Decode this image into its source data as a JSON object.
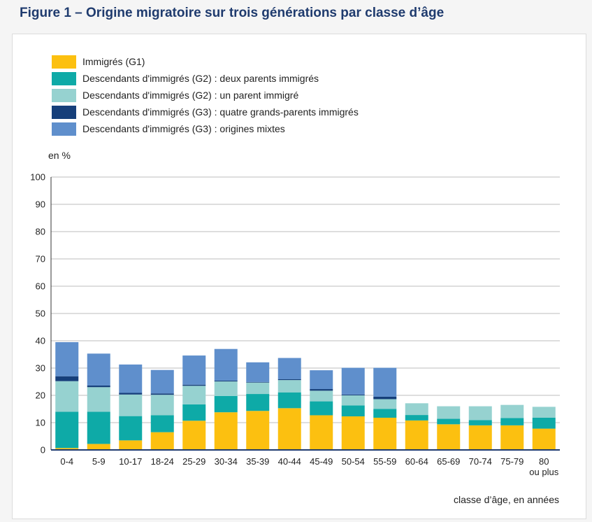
{
  "title": "Figure 1 – Origine migratoire sur trois générations par classe d’âge",
  "chart_data": {
    "type": "bar",
    "stacked": true,
    "title": "Origine migratoire sur trois générations par classe d’âge",
    "xlabel": "classe d’âge, en années",
    "ylabel": "en %",
    "ylim": [
      0,
      100
    ],
    "yticks": [
      0,
      10,
      20,
      30,
      40,
      50,
      60,
      70,
      80,
      90,
      100
    ],
    "grid": true,
    "legend_position": "top-left",
    "categories": [
      "0-4",
      "5-9",
      "10-17",
      "18-24",
      "25-29",
      "30-34",
      "35-39",
      "40-44",
      "45-49",
      "50-54",
      "55-59",
      "60-64",
      "65-69",
      "70-74",
      "75-79",
      "80 ou plus"
    ],
    "category_lines": [
      [
        "0-4"
      ],
      [
        "5-9"
      ],
      [
        "10-17"
      ],
      [
        "18-24"
      ],
      [
        "25-29"
      ],
      [
        "30-34"
      ],
      [
        "35-39"
      ],
      [
        "40-44"
      ],
      [
        "45-49"
      ],
      [
        "50-54"
      ],
      [
        "55-59"
      ],
      [
        "60-64"
      ],
      [
        "65-69"
      ],
      [
        "70-74"
      ],
      [
        "75-79"
      ],
      [
        "80",
        "ou plus"
      ]
    ],
    "series": [
      {
        "name": "Immigrés (G1)",
        "color": "#fcc010",
        "values": [
          0.7,
          2.2,
          3.5,
          6.5,
          10.7,
          13.8,
          14.3,
          15.3,
          12.7,
          12.3,
          11.8,
          10.8,
          9.4,
          9.0,
          9.0,
          7.8
        ]
      },
      {
        "name": "Descendants d'immigrés (G2) : deux parents immigrés",
        "color": "#0eaaa7",
        "values": [
          13.3,
          11.8,
          8.9,
          6.2,
          6.0,
          6.0,
          6.2,
          5.8,
          5.1,
          4.0,
          3.2,
          2.0,
          2.0,
          1.9,
          2.7,
          4.0
        ]
      },
      {
        "name": "Descendants d'immigrés (G2) : un parent immigré",
        "color": "#96d2d0",
        "values": [
          11.2,
          9.0,
          7.9,
          7.5,
          6.8,
          5.3,
          4.2,
          4.5,
          3.9,
          3.7,
          3.6,
          4.3,
          4.6,
          5.1,
          4.8,
          4.0
        ]
      },
      {
        "name": "Descendants d'immigrés (G3) : quatre grands-parents immigrés",
        "color": "#163f7a",
        "values": [
          1.8,
          0.6,
          0.6,
          0.5,
          0.4,
          0.3,
          0.2,
          0.3,
          0.6,
          0.3,
          0.9,
          0,
          0,
          0,
          0,
          0
        ]
      },
      {
        "name": "Descendants d'immigrés (G3) : origines mixtes",
        "color": "#5f8fcc",
        "values": [
          12.5,
          11.7,
          10.4,
          8.6,
          10.7,
          11.6,
          7.2,
          7.8,
          6.9,
          9.8,
          10.6,
          0,
          0,
          0,
          0,
          0
        ]
      }
    ]
  }
}
